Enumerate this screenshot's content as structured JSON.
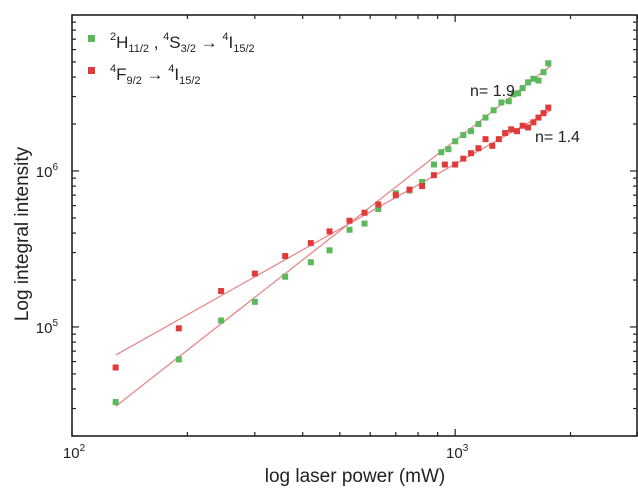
{
  "chart_data": {
    "type": "scatter",
    "xlabel": "log laser power (mW)",
    "ylabel": "Log integral intensity",
    "xscale": "log",
    "yscale": "log",
    "xlim": [
      100,
      3000
    ],
    "ylim": [
      20000,
      10000000
    ],
    "x_ticks": [
      {
        "value": 100,
        "base": "10",
        "exp": "2"
      },
      {
        "value": 1000,
        "base": "10",
        "exp": "3"
      }
    ],
    "y_ticks": [
      {
        "value": 100000,
        "base": "10",
        "exp": "5"
      },
      {
        "value": 1000000,
        "base": "10",
        "exp": "6"
      }
    ],
    "legend_position": "top-left",
    "fit_color": "#e8888a",
    "series": [
      {
        "name": "²H11/2 , ⁴S3/2 → ⁴I15/2",
        "legend": {
          "t1": "2",
          "t2": "H",
          "t3": "11/2",
          "t4": " , ",
          "t5": "4",
          "t6": "S",
          "t7": "3/2",
          "t8": " → ",
          "t9": "4",
          "t10": "I",
          "t11": "15/2"
        },
        "color": "#5cb85c",
        "slope_label": "n= 1.9",
        "fit": {
          "x": [
            130,
            1780
          ],
          "y": [
            31000,
            4750000
          ]
        },
        "x": [
          130,
          190,
          245,
          300,
          360,
          420,
          470,
          530,
          580,
          630,
          700,
          760,
          820,
          880,
          920,
          960,
          1000,
          1050,
          1100,
          1150,
          1200,
          1260,
          1320,
          1380,
          1420,
          1460,
          1500,
          1550,
          1600,
          1650,
          1700,
          1750
        ],
        "y": [
          33000,
          62000,
          110000,
          145000,
          210000,
          260000,
          310000,
          420000,
          460000,
          570000,
          720000,
          750000,
          850000,
          1100000,
          1320000,
          1380000,
          1550000,
          1700000,
          1800000,
          2000000,
          2200000,
          2450000,
          2750000,
          2800000,
          3100000,
          3150000,
          3400000,
          3700000,
          3900000,
          3800000,
          4300000,
          4900000
        ]
      },
      {
        "name": "⁴F9/2 → ⁴I15/2",
        "legend": {
          "t1": "4",
          "t2": "F",
          "t3": "9/2",
          "t4": " → ",
          "t5": "4",
          "t6": "I",
          "t7": "15/2"
        },
        "color": "#e03b3b",
        "slope_label": "n= 1.4",
        "fit": {
          "x": [
            130,
            1780
          ],
          "y": [
            66000,
            2460000
          ]
        },
        "x": [
          130,
          190,
          245,
          300,
          360,
          420,
          470,
          530,
          580,
          630,
          700,
          760,
          820,
          880,
          940,
          1000,
          1050,
          1100,
          1150,
          1200,
          1250,
          1300,
          1350,
          1400,
          1450,
          1500,
          1550,
          1600,
          1650,
          1700,
          1750
        ],
        "y": [
          55000,
          98000,
          170000,
          220000,
          285000,
          345000,
          410000,
          480000,
          540000,
          610000,
          700000,
          760000,
          800000,
          940000,
          1100000,
          1100000,
          1200000,
          1300000,
          1400000,
          1600000,
          1450000,
          1600000,
          1750000,
          1850000,
          1800000,
          1950000,
          1900000,
          2050000,
          2200000,
          2350000,
          2550000
        ]
      }
    ]
  }
}
